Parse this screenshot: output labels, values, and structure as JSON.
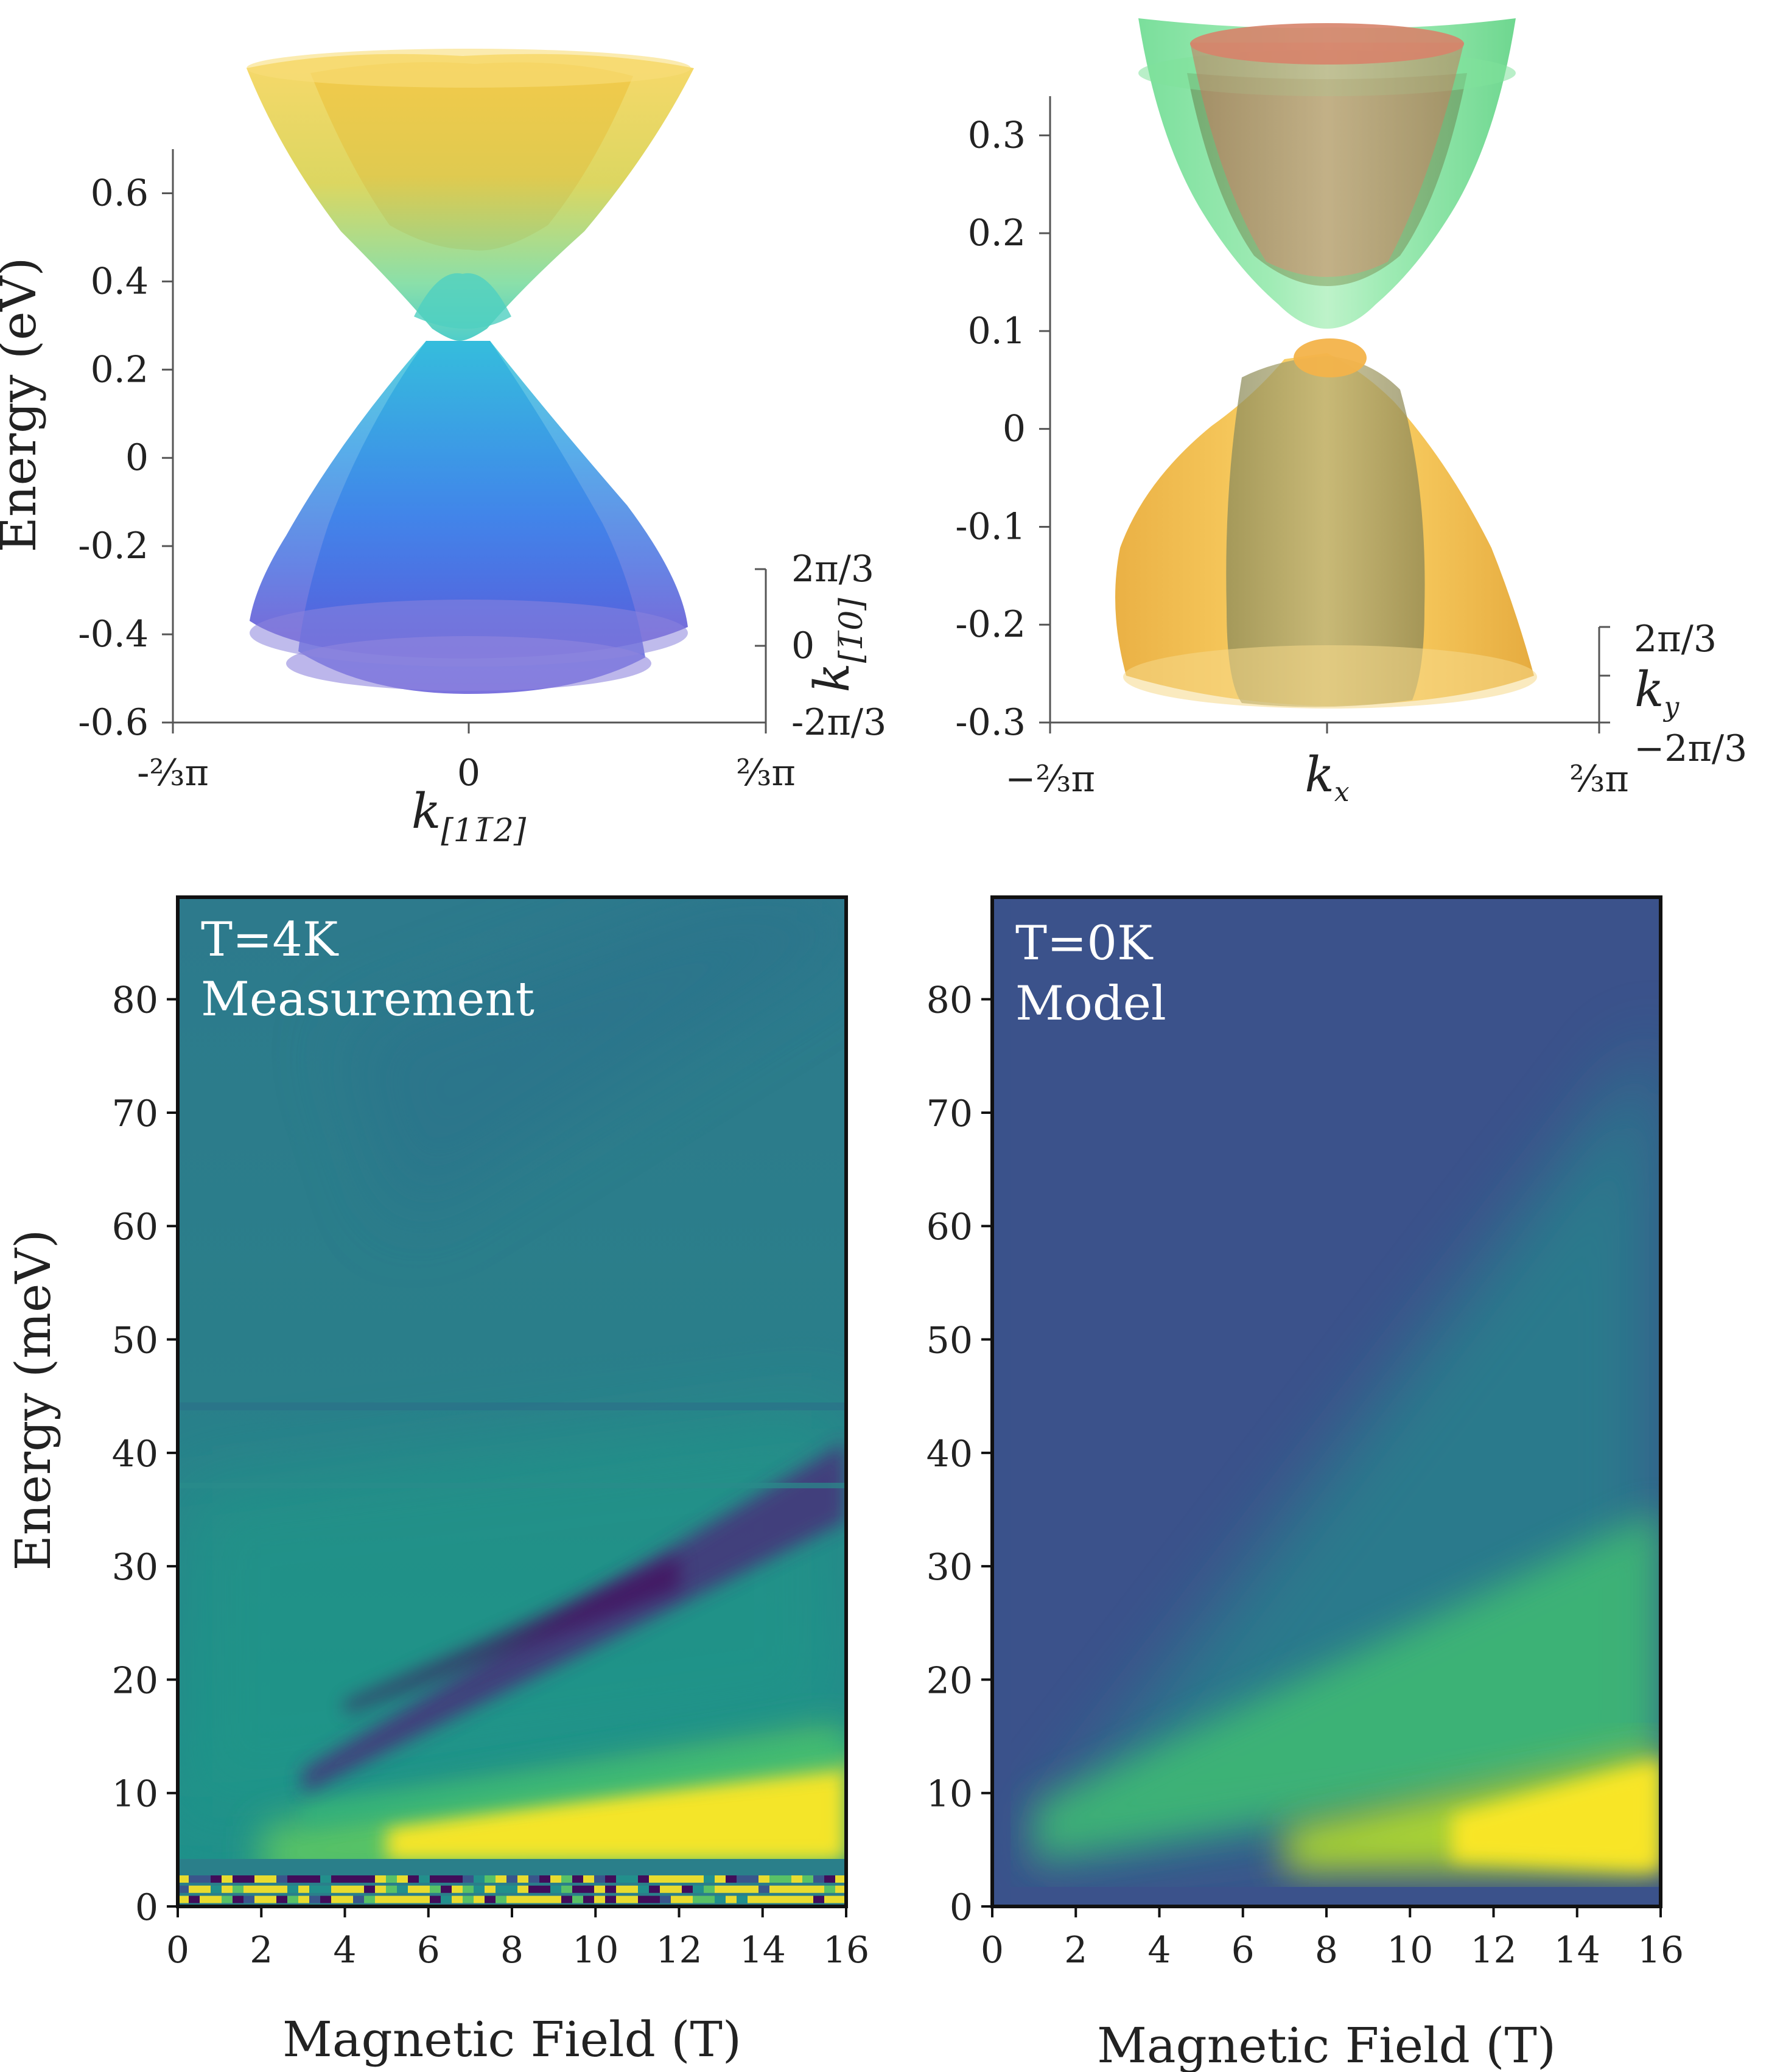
{
  "colors": {
    "band_cond_top": "#f2c84a",
    "band_cond_mid": "#56d0b8",
    "band_val_top": "#2ec0d6",
    "band_val_bottom": "#6a4fd6",
    "band_green": "#5fe08a",
    "band_red": "#d9876a",
    "band_orange": "#f2b43a",
    "viridis_dark": "#440154",
    "viridis_yellow": "#fde725"
  },
  "chart_data": [
    {
      "id": "band-3d-left",
      "type": "surface3d",
      "ylabel": "Energy (eV)",
      "yticks": [
        0.6,
        0.4,
        0.2,
        0,
        -0.2,
        -0.4,
        -0.6
      ],
      "ytick_labels": [
        "0.6",
        "0.4",
        "0.2",
        "0",
        "-0.2",
        "-0.4",
        "-0.6"
      ],
      "ylim": [
        -0.6,
        0.7
      ],
      "xaxis_label": "k[11̅2]",
      "xaxis_label_main": "k",
      "xaxis_label_sub": "[11̅2]",
      "xtick_labels": [
        "-⅔π",
        "0",
        "⅔π"
      ],
      "depth_label": "k[1̅0]",
      "depth_label_main": "k",
      "depth_label_sub": "[1̅0]",
      "depth_tick_labels": [
        "2π/3",
        "0",
        "-2π/3"
      ],
      "features": {
        "conduction_band_min_eV": 0.2,
        "valence_band_max_eV": 0.2,
        "conduction_top_eV": 0.76,
        "valence_bottom_eV": -0.55
      }
    },
    {
      "id": "band-3d-right",
      "type": "surface3d",
      "yticks": [
        0.3,
        0.2,
        0.1,
        0,
        -0.1,
        -0.2,
        -0.3
      ],
      "ytick_labels": [
        "0.3",
        "0.2",
        "0.1",
        "0",
        "-0.1",
        "-0.2",
        "-0.3"
      ],
      "ylim": [
        -0.3,
        0.34
      ],
      "xaxis_label": "kx",
      "xaxis_label_main": "k",
      "xaxis_label_sub": "x",
      "xtick_labels": [
        "−⅔π",
        "⅔π"
      ],
      "depth_label": "ky",
      "depth_label_main": "k",
      "depth_label_sub": "y",
      "depth_tick_labels": [
        "2π/3",
        "−2π/3"
      ],
      "features": {
        "conduction_band_min_eV": 0.06,
        "valence_band_max_eV": 0.07,
        "conduction_top_eV": 0.33,
        "valence_bottom_eV": -0.28
      }
    },
    {
      "id": "heatmap-measurement",
      "type": "heatmap",
      "annotation_line1": "T=4K",
      "annotation_line2": "Measurement",
      "xlabel": "Magnetic Field (T)",
      "ylabel": "Energy (meV)",
      "xlim": [
        0,
        16
      ],
      "ylim": [
        0,
        89
      ],
      "xticks": [
        0,
        2,
        4,
        6,
        8,
        10,
        12,
        14,
        16
      ],
      "yticks": [
        0,
        10,
        20,
        30,
        40,
        50,
        60,
        70,
        80
      ],
      "features": {
        "dark_line_from": [
          3,
          12
        ],
        "dark_line_to": [
          16,
          40
        ],
        "bright_band_from": [
          2,
          3
        ],
        "bright_band_to": [
          16,
          9
        ],
        "horizontal_artifact_energies_meV": [
          17.5,
          44.5
        ],
        "noisy_region_below_meV": 3
      }
    },
    {
      "id": "heatmap-model",
      "type": "heatmap",
      "annotation_line1": "T=0K",
      "annotation_line2": "Model",
      "xlabel": "Magnetic Field (T)",
      "xlim": [
        0,
        16
      ],
      "ylim": [
        0,
        89
      ],
      "xticks": [
        0,
        2,
        4,
        6,
        8,
        10,
        12,
        14,
        16
      ],
      "yticks": [
        0,
        10,
        20,
        30,
        40,
        50,
        60,
        70,
        80
      ],
      "features": {
        "bright_band_from": [
          7,
          4
        ],
        "bright_band_to": [
          16,
          9
        ],
        "green_band_from": [
          1,
          6
        ],
        "green_band_to": [
          16,
          35
        ]
      }
    }
  ]
}
